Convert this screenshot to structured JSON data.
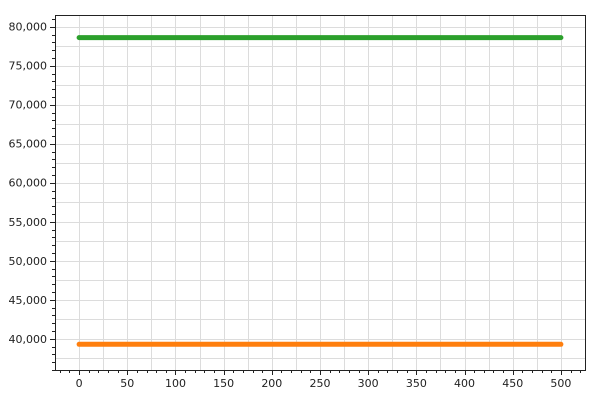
{
  "chart_data": {
    "type": "line",
    "title": "",
    "xlabel": "",
    "ylabel": "",
    "xlim": [
      -25,
      525
    ],
    "ylim": [
      36000,
      81500
    ],
    "xticks": [
      0,
      50,
      100,
      150,
      200,
      250,
      300,
      350,
      400,
      450,
      500
    ],
    "xtick_labels": [
      "0",
      "50",
      "100",
      "150",
      "200",
      "250",
      "300",
      "350",
      "400",
      "450",
      "500"
    ],
    "yticks": [
      40000,
      45000,
      50000,
      55000,
      60000,
      65000,
      70000,
      75000,
      80000
    ],
    "ytick_labels": [
      "40,000",
      "45,000",
      "50,000",
      "55,000",
      "60,000",
      "65,000",
      "70,000",
      "75,000",
      "80,000"
    ],
    "grid": true,
    "series": [
      {
        "color": "#2ca02c",
        "x": [
          0,
          500
        ],
        "values": [
          78600,
          78600
        ]
      },
      {
        "color": "#ff7f0e",
        "x": [
          0,
          500
        ],
        "values": [
          39300,
          39300
        ]
      }
    ]
  }
}
